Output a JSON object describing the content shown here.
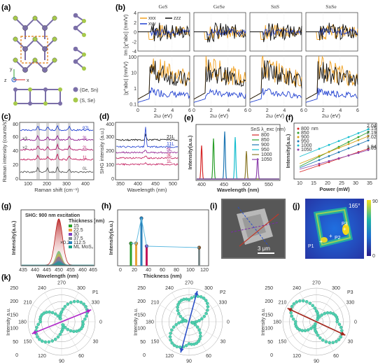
{
  "panel_labels": [
    "(a)",
    "(b)",
    "(c)",
    "(d)",
    "(e)",
    "(f)",
    "(g)",
    "(h)",
    "(i)",
    "(j)",
    "(k)"
  ],
  "panel_a": {
    "legend": [
      "(Ge, Sn)",
      "(S, Se)"
    ],
    "axes": [
      "z",
      "x",
      "y"
    ],
    "colors": {
      "metal": "#7b6fa8",
      "chalcogen": "#a6c94a",
      "highlight": "#e07a12"
    }
  },
  "panel_b": {
    "column_titles": [
      "GeS",
      "GeSe",
      "SnS",
      "SnSe"
    ],
    "ylabel_top": "Im [χ^abc] (nm/V)",
    "ylabel_bottom": "|χ^abc| (nm/V)",
    "xlabel": "2ω (eV)",
    "legend": [
      "xxx",
      "xyy",
      "zzz"
    ],
    "top_ticks": [
      "4",
      "2",
      "0",
      "-2",
      "-4"
    ],
    "bottom_ticks": [
      "100",
      "10",
      "1",
      "0.1"
    ],
    "x_ticks": [
      "0",
      "2",
      "4",
      "6"
    ]
  },
  "panel_c": {
    "ylabel": "Raman intensity (counts/s)",
    "xlabel": "Raman shift (cm⁻¹)",
    "y_ticks": [
      "0",
      "20",
      "40",
      "60",
      "80"
    ],
    "x_ticks": [
      "100",
      "200",
      "300",
      "400"
    ],
    "trace_labels": [
      "97L",
      "3L",
      "2L",
      "1L",
      "0L"
    ],
    "annotations": [
      "×3",
      "×2"
    ]
  },
  "panel_d": {
    "ylabel": "SHG intensity (a.u.)",
    "xlabel": "Wavelength (nm)",
    "y_ticks": [
      "0",
      "100",
      "200",
      "300",
      "400"
    ],
    "x_ticks": [
      "350",
      "400",
      "450",
      "500"
    ],
    "trace_labels": [
      "21L",
      "11L",
      "5L",
      "3L",
      "1L"
    ]
  },
  "panel_e": {
    "ylabel": "Intensity(a.u.)",
    "xlabel": "Wavelength (nm)",
    "x_ticks": [
      "400",
      "450",
      "500",
      "550"
    ],
    "legend_title": "SnS λ_exc (nm)",
    "legend": [
      "800",
      "850",
      "900",
      "950",
      "1000",
      "1050"
    ],
    "colors": [
      "#d62728",
      "#2ca02c",
      "#1f77b4",
      "#17becf",
      "#8c7a2b",
      "#8e44ad"
    ]
  },
  "panel_f": {
    "ylabel": "Intensity(a.u.)",
    "xlabel": "Power (mW)",
    "x_ticks": [
      "10",
      "15",
      "20",
      "25",
      "30",
      "35"
    ],
    "legend": [
      "800",
      "850",
      "900",
      "950",
      "1000",
      "1050"
    ],
    "legend_unit": "nm",
    "slopes": [
      "2.05",
      "2.15",
      "2.19",
      "2.02",
      "2.04",
      "1.94"
    ]
  },
  "panel_g": {
    "title": "SHG: 900 nm excitation",
    "ylabel": "Intensity(a.u.)",
    "xlabel": "Wavelength (nm)",
    "x_ticks": [
      "435",
      "440",
      "445",
      "450",
      "455",
      "460",
      "465"
    ],
    "legend_title": "Thickness (nm)",
    "legend": [
      "15",
      "22.5",
      "30",
      "37.5",
      "112.5",
      "ML MoS₂"
    ],
    "annotation": "×0.2"
  },
  "panel_h": {
    "ylabel": "Intensity(a.u.)",
    "xlabel": "Thickness (nm)",
    "x_ticks": [
      "0",
      "20",
      "40",
      "60",
      "80",
      "100",
      "120"
    ]
  },
  "panel_i": {
    "scalebar": "3 μm"
  },
  "panel_j": {
    "angle": "165°",
    "colorbar": [
      "90",
      "0"
    ],
    "points": [
      "P1",
      "P2",
      "P3"
    ]
  },
  "panel_k": {
    "ylabel": "Intensity a.u.",
    "plots": [
      {
        "name": "P1",
        "arrow_color": "#b026c9"
      },
      {
        "name": "P2",
        "arrow_color": "#2b4fc7"
      },
      {
        "name": "P3",
        "arrow_color": "#a3241a"
      }
    ],
    "angle_labels": [
      "0",
      "30",
      "60",
      "90",
      "120",
      "150",
      "180",
      "210",
      "240",
      "270",
      "300",
      "330"
    ],
    "radial_labels": [
      "250",
      "200",
      "150",
      "100",
      "50",
      "0"
    ]
  }
}
